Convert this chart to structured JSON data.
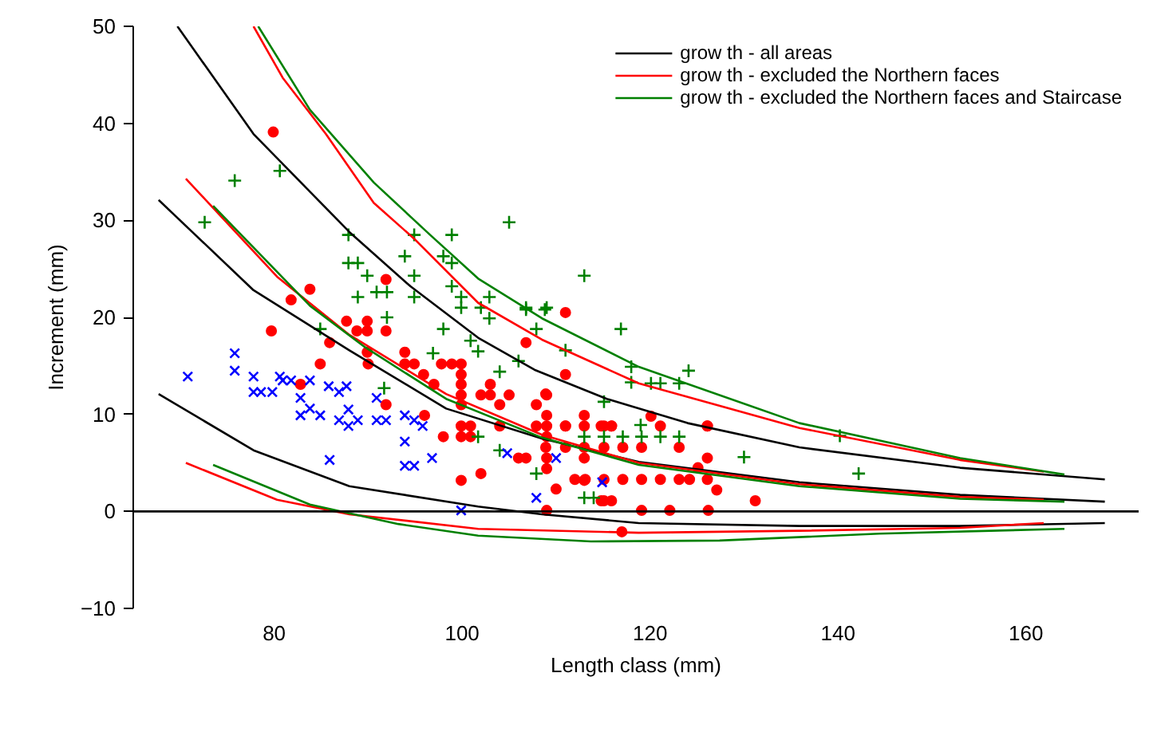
{
  "chart_data": {
    "type": "scatter",
    "xlabel": "Length class (mm)",
    "ylabel": "Increment (mm)",
    "xlim": [
      65,
      172
    ],
    "ylim": [
      -10,
      50
    ],
    "xticks": [
      80,
      100,
      120,
      140,
      160
    ],
    "yticks": [
      -10,
      0,
      10,
      20,
      30,
      40,
      50
    ],
    "grid": false,
    "legend": "top right",
    "ref_lines": [
      {
        "axis": "y",
        "value": 0,
        "color": "#000000"
      }
    ],
    "series": [
      {
        "color": "#0000ff",
        "marker": "x",
        "x": [
          70.8,
          75.8,
          75.8,
          77.8,
          77.8,
          78.6,
          79.8,
          80.6,
          80.9,
          81.8,
          82.8,
          82.8,
          83.8,
          83.8,
          84.9,
          85.8,
          85.9,
          86.9,
          86.9,
          87.7,
          87.9,
          87.9,
          88.9,
          90.9,
          90.9,
          91.9,
          93.9,
          93.9,
          93.9,
          94.9,
          94.9,
          95.8,
          96.8,
          99.9,
          104.8,
          107.9,
          110,
          114.9
        ],
        "values": [
          13.9,
          16.3,
          14.5,
          13.9,
          12.3,
          12.3,
          12.3,
          13.9,
          13.5,
          13.5,
          11.7,
          9.9,
          13.5,
          10.6,
          9.9,
          12.9,
          5.3,
          12.3,
          9.4,
          12.9,
          10.5,
          8.8,
          9.4,
          11.7,
          9.4,
          9.4,
          9.9,
          7.2,
          4.7,
          9.4,
          4.7,
          8.8,
          5.5,
          0.1,
          6.0,
          1.4,
          5.5,
          3.0
        ]
      },
      {
        "color": "#ff0000",
        "marker": "circle",
        "x": [
          79.9,
          79.7,
          81.8,
          83.8,
          82.8,
          85.9,
          84.9,
          87.7,
          88.8,
          89.9,
          89.9,
          91.9,
          91.9,
          89.9,
          90,
          91.9,
          93.9,
          93.9,
          94.9,
          95.9,
          96,
          97,
          97.8,
          98.9,
          99.9,
          99.9,
          99.9,
          99.9,
          99.9,
          98,
          99.9,
          100.9,
          99.9,
          100.9,
          99.9,
          102,
          103,
          103,
          102,
          104,
          104,
          105,
          106.8,
          107.9,
          107.9,
          109,
          109,
          109,
          109,
          109,
          109,
          109,
          110,
          111,
          111,
          111,
          106,
          106.8,
          113,
          113,
          113,
          114.8,
          115.9,
          114.8,
          115.9,
          117,
          108.9,
          111,
          113,
          115.1,
          115.9,
          121.1,
          126.1,
          120.1,
          108.9,
          111,
          113,
          115.1,
          117.1,
          119.1,
          123.1,
          112,
          113.1,
          115.1,
          117.1,
          119.1,
          121.1,
          123.1,
          124.2,
          126.1,
          127.1,
          131.2,
          115.1,
          119.1,
          122.1,
          126.2,
          125.1,
          126.1,
          126.1
        ],
        "values": [
          39.1,
          18.6,
          21.8,
          22.9,
          13.1,
          17.4,
          15.2,
          19.6,
          18.6,
          19.6,
          18.6,
          23.9,
          18.6,
          16.4,
          15.2,
          11.0,
          16.4,
          15.2,
          15.2,
          14.1,
          9.9,
          13.1,
          15.2,
          15.2,
          15.2,
          14.1,
          13.1,
          12.0,
          11.0,
          7.7,
          8.8,
          8.8,
          7.7,
          7.7,
          3.2,
          12.0,
          13.1,
          12.0,
          3.9,
          11.0,
          8.8,
          12.0,
          17.4,
          11.0,
          8.8,
          12.0,
          9.9,
          8.8,
          7.7,
          5.5,
          4.4,
          0.1,
          2.3,
          20.5,
          14.1,
          8.8,
          5.5,
          5.5,
          9.9,
          5.5,
          3.2,
          8.8,
          8.8,
          1.1,
          1.1,
          -2.1,
          12.1,
          8.8,
          8.8,
          8.8,
          8.8,
          8.8,
          8.8,
          9.8,
          6.6,
          6.6,
          6.6,
          6.6,
          6.6,
          6.6,
          6.6,
          3.3,
          3.3,
          3.3,
          3.3,
          3.3,
          3.3,
          3.3,
          3.3,
          3.3,
          2.2,
          1.1,
          1.1,
          0.1,
          0.1,
          0.1,
          4.5,
          5.5,
          8.8
        ]
      },
      {
        "color": "#008000",
        "marker": "cross",
        "x": [
          72.6,
          75.8,
          80.6,
          84.9,
          87.9,
          87.9,
          88.9,
          89.9,
          90.9,
          92.0,
          92.0,
          88.9,
          93.9,
          94.9,
          94.9,
          94.9,
          98.0,
          98.9,
          98.9,
          98.9,
          99.9,
          99.9,
          96.9,
          98.0,
          100.9,
          101.7,
          102.9,
          102.9,
          102,
          105,
          104,
          106,
          106.8,
          107.9,
          109,
          113,
          91.7,
          101.7,
          104,
          107.9,
          113,
          114,
          116.9,
          118,
          118,
          120.1,
          121.1,
          123.1,
          124.1,
          111,
          115.1,
          119,
          140.2,
          130,
          142.2,
          108.8,
          106.8,
          113,
          115.1,
          117.1,
          119.1,
          121.1,
          123.1
        ],
        "values": [
          29.8,
          34.1,
          35.1,
          18.8,
          28.5,
          25.6,
          25.6,
          24.3,
          22.6,
          22.6,
          20.0,
          22.1,
          26.3,
          28.5,
          24.3,
          22.1,
          26.3,
          28.5,
          25.6,
          23.2,
          22.1,
          21.0,
          16.3,
          18.8,
          17.6,
          16.5,
          22.1,
          19.9,
          21.0,
          29.8,
          14.4,
          15.5,
          21.0,
          18.8,
          21.0,
          24.3,
          12.7,
          7.7,
          6.3,
          3.9,
          1.4,
          1.4,
          18.8,
          14.9,
          13.3,
          13.2,
          13.2,
          13.2,
          14.5,
          16.6,
          11.3,
          8.9,
          7.8,
          5.6,
          3.9,
          20.8,
          20.8,
          7.7,
          7.7,
          7.7,
          7.7,
          7.7,
          7.7
        ]
      },
      {
        "type": "line",
        "name": "grow th - all areas",
        "color": "#000000",
        "marker": "none",
        "x": [
          67.7,
          77.8,
          88,
          98.3,
          108.5,
          118.8,
          135.9,
          153,
          168.4
        ],
        "values": [
          32.1,
          22.8,
          16.6,
          10.6,
          7.5,
          5.1,
          3.0,
          1.7,
          1.0
        ]
      },
      {
        "type": "line",
        "name": "grow th - excluded the Northern faces",
        "color": "#ff0000",
        "marker": "none",
        "x": [
          70.6,
          80.3,
          88,
          98.3,
          108.5,
          118.8,
          135.9,
          153,
          161.9
        ],
        "values": [
          34.3,
          24.2,
          18.2,
          12.1,
          7.9,
          5.0,
          2.8,
          1.5,
          1.2
        ]
      },
      {
        "type": "line",
        "name": "grow th - excluded the Northern faces and Staircase",
        "color": "#008000",
        "marker": "none",
        "x": [
          73.5,
          83.8,
          89.7,
          98.3,
          108.5,
          118.8,
          135.9,
          153,
          164.1
        ],
        "values": [
          31.5,
          21.2,
          16.9,
          11.6,
          7.6,
          4.8,
          2.6,
          1.3,
          1.0
        ]
      },
      {
        "type": "line",
        "color": "#000000",
        "marker": "none",
        "x": [
          69.7,
          77.8,
          88,
          94.5,
          101.7,
          107.7,
          115.4,
          124,
          135.9,
          153,
          168.4
        ],
        "values": [
          50,
          38.9,
          28.8,
          23.2,
          17.9,
          14.6,
          11.6,
          9.1,
          6.6,
          4.5,
          3.3
        ]
      },
      {
        "type": "line",
        "color": "#000000",
        "marker": "none",
        "x": [
          67.7,
          77.8,
          88,
          101.7,
          108.5,
          118.8,
          135.9,
          153,
          168.4
        ],
        "values": [
          12.1,
          6.3,
          2.6,
          0.5,
          -0.3,
          -1.2,
          -1.5,
          -1.5,
          -1.2
        ]
      },
      {
        "type": "line",
        "color": "#ff0000",
        "marker": "none",
        "x": [
          77.8,
          80.9,
          85.5,
          90.6,
          94.9,
          101.7,
          108.5,
          118.8,
          135.9,
          153,
          161.9
        ],
        "values": [
          50,
          44.7,
          38.9,
          31.8,
          28.1,
          21.5,
          17.7,
          13.2,
          8.6,
          5.3,
          4.1
        ]
      },
      {
        "type": "line",
        "color": "#ff0000",
        "marker": "none",
        "x": [
          70.6,
          80.3,
          88,
          101.7,
          118.8,
          135.9,
          153,
          161.9
        ],
        "values": [
          5.0,
          1.2,
          -0.3,
          -1.8,
          -2.2,
          -2.0,
          -1.7,
          -1.2
        ]
      },
      {
        "type": "line",
        "color": "#008000",
        "marker": "none",
        "x": [
          78.3,
          83.8,
          90.6,
          96.6,
          101.7,
          108.5,
          118.8,
          135.9,
          153,
          164.1
        ],
        "values": [
          50,
          41.4,
          33.9,
          28.5,
          24.0,
          19.9,
          14.9,
          9.1,
          5.5,
          3.8
        ]
      },
      {
        "type": "line",
        "color": "#008000",
        "marker": "none",
        "x": [
          73.5,
          83.8,
          93.2,
          101.7,
          113.7,
          127.4,
          144.4,
          164.1
        ],
        "values": [
          4.8,
          0.7,
          -1.3,
          -2.5,
          -3.1,
          -3.0,
          -2.3,
          -1.8
        ]
      }
    ]
  }
}
